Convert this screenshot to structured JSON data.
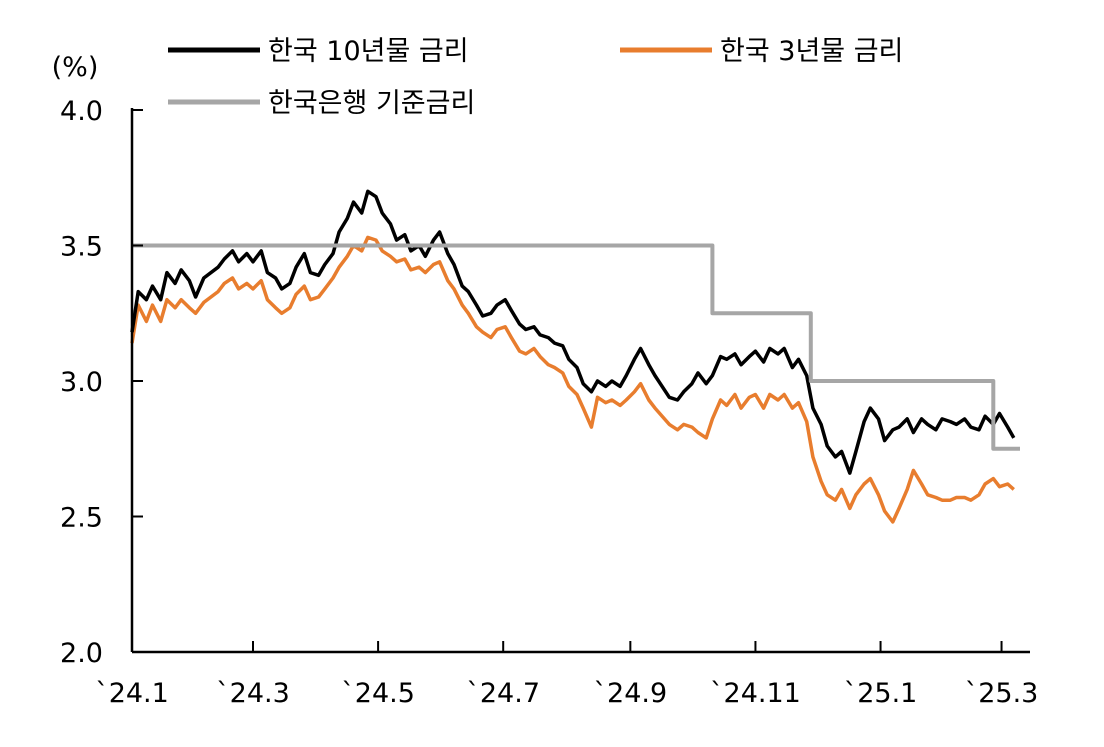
{
  "chart_data": {
    "type": "line",
    "unit_label": "(%)",
    "ylim": [
      2.0,
      4.0
    ],
    "y_ticks": [
      {
        "value": 2.0,
        "label": "2.0"
      },
      {
        "value": 2.5,
        "label": "2.5"
      },
      {
        "value": 3.0,
        "label": "3.0"
      },
      {
        "value": 3.5,
        "label": "3.5"
      },
      {
        "value": 4.0,
        "label": "4.0"
      }
    ],
    "x_start": "2024-01-02",
    "x_end": "2025-03-10",
    "x_ticks": [
      {
        "date": "2024-01-02",
        "label": "`24.1"
      },
      {
        "date": "2024-03-01",
        "label": "`24.3"
      },
      {
        "date": "2024-05-01",
        "label": "`24.5"
      },
      {
        "date": "2024-07-01",
        "label": "`24.7"
      },
      {
        "date": "2024-09-01",
        "label": "`24.9"
      },
      {
        "date": "2024-11-01",
        "label": "`24.11"
      },
      {
        "date": "2025-01-01",
        "label": "`25.1"
      },
      {
        "date": "2025-03-01",
        "label": "`25.3"
      }
    ],
    "grid": false,
    "legend_position": "top",
    "series": [
      {
        "name": "한국 10년물 금리",
        "color": "#000000",
        "points": [
          [
            "2024-01-02",
            3.18
          ],
          [
            "2024-01-05",
            3.33
          ],
          [
            "2024-01-09",
            3.3
          ],
          [
            "2024-01-12",
            3.35
          ],
          [
            "2024-01-16",
            3.3
          ],
          [
            "2024-01-19",
            3.4
          ],
          [
            "2024-01-23",
            3.36
          ],
          [
            "2024-01-26",
            3.41
          ],
          [
            "2024-01-30",
            3.37
          ],
          [
            "2024-02-02",
            3.31
          ],
          [
            "2024-02-06",
            3.38
          ],
          [
            "2024-02-13",
            3.42
          ],
          [
            "2024-02-16",
            3.45
          ],
          [
            "2024-02-20",
            3.48
          ],
          [
            "2024-02-23",
            3.44
          ],
          [
            "2024-02-27",
            3.47
          ],
          [
            "2024-03-01",
            3.44
          ],
          [
            "2024-03-05",
            3.48
          ],
          [
            "2024-03-08",
            3.4
          ],
          [
            "2024-03-12",
            3.38
          ],
          [
            "2024-03-15",
            3.34
          ],
          [
            "2024-03-19",
            3.36
          ],
          [
            "2024-03-22",
            3.42
          ],
          [
            "2024-03-26",
            3.47
          ],
          [
            "2024-03-29",
            3.4
          ],
          [
            "2024-04-02",
            3.39
          ],
          [
            "2024-04-05",
            3.43
          ],
          [
            "2024-04-09",
            3.47
          ],
          [
            "2024-04-12",
            3.55
          ],
          [
            "2024-04-16",
            3.6
          ],
          [
            "2024-04-19",
            3.66
          ],
          [
            "2024-04-23",
            3.62
          ],
          [
            "2024-04-26",
            3.7
          ],
          [
            "2024-04-30",
            3.68
          ],
          [
            "2024-05-03",
            3.62
          ],
          [
            "2024-05-07",
            3.58
          ],
          [
            "2024-05-10",
            3.52
          ],
          [
            "2024-05-14",
            3.54
          ],
          [
            "2024-05-17",
            3.48
          ],
          [
            "2024-05-21",
            3.5
          ],
          [
            "2024-05-24",
            3.46
          ],
          [
            "2024-05-28",
            3.52
          ],
          [
            "2024-05-31",
            3.55
          ],
          [
            "2024-06-04",
            3.47
          ],
          [
            "2024-06-07",
            3.43
          ],
          [
            "2024-06-11",
            3.35
          ],
          [
            "2024-06-14",
            3.33
          ],
          [
            "2024-06-18",
            3.28
          ],
          [
            "2024-06-21",
            3.24
          ],
          [
            "2024-06-25",
            3.25
          ],
          [
            "2024-06-28",
            3.28
          ],
          [
            "2024-07-02",
            3.3
          ],
          [
            "2024-07-05",
            3.26
          ],
          [
            "2024-07-09",
            3.21
          ],
          [
            "2024-07-12",
            3.19
          ],
          [
            "2024-07-16",
            3.2
          ],
          [
            "2024-07-19",
            3.17
          ],
          [
            "2024-07-23",
            3.16
          ],
          [
            "2024-07-26",
            3.14
          ],
          [
            "2024-07-30",
            3.13
          ],
          [
            "2024-08-02",
            3.08
          ],
          [
            "2024-08-06",
            3.05
          ],
          [
            "2024-08-09",
            2.99
          ],
          [
            "2024-08-13",
            2.96
          ],
          [
            "2024-08-16",
            3.0
          ],
          [
            "2024-08-20",
            2.98
          ],
          [
            "2024-08-23",
            3.0
          ],
          [
            "2024-08-27",
            2.98
          ],
          [
            "2024-08-30",
            3.02
          ],
          [
            "2024-09-03",
            3.08
          ],
          [
            "2024-09-06",
            3.12
          ],
          [
            "2024-09-10",
            3.06
          ],
          [
            "2024-09-13",
            3.02
          ],
          [
            "2024-09-20",
            2.94
          ],
          [
            "2024-09-24",
            2.93
          ],
          [
            "2024-09-27",
            2.96
          ],
          [
            "2024-10-01",
            2.99
          ],
          [
            "2024-10-04",
            3.03
          ],
          [
            "2024-10-08",
            2.99
          ],
          [
            "2024-10-11",
            3.02
          ],
          [
            "2024-10-15",
            3.09
          ],
          [
            "2024-10-18",
            3.08
          ],
          [
            "2024-10-22",
            3.1
          ],
          [
            "2024-10-25",
            3.06
          ],
          [
            "2024-10-29",
            3.09
          ],
          [
            "2024-11-01",
            3.11
          ],
          [
            "2024-11-05",
            3.07
          ],
          [
            "2024-11-08",
            3.12
          ],
          [
            "2024-11-12",
            3.1
          ],
          [
            "2024-11-15",
            3.12
          ],
          [
            "2024-11-19",
            3.05
          ],
          [
            "2024-11-22",
            3.08
          ],
          [
            "2024-11-26",
            3.02
          ],
          [
            "2024-11-29",
            2.9
          ],
          [
            "2024-12-03",
            2.84
          ],
          [
            "2024-12-06",
            2.76
          ],
          [
            "2024-12-10",
            2.72
          ],
          [
            "2024-12-13",
            2.74
          ],
          [
            "2024-12-17",
            2.66
          ],
          [
            "2024-12-20",
            2.74
          ],
          [
            "2024-12-24",
            2.85
          ],
          [
            "2024-12-27",
            2.9
          ],
          [
            "2024-12-31",
            2.86
          ],
          [
            "2025-01-03",
            2.78
          ],
          [
            "2025-01-07",
            2.82
          ],
          [
            "2025-01-10",
            2.83
          ],
          [
            "2025-01-14",
            2.86
          ],
          [
            "2025-01-17",
            2.81
          ],
          [
            "2025-01-21",
            2.86
          ],
          [
            "2025-01-24",
            2.84
          ],
          [
            "2025-01-28",
            2.82
          ],
          [
            "2025-01-31",
            2.86
          ],
          [
            "2025-02-04",
            2.85
          ],
          [
            "2025-02-07",
            2.84
          ],
          [
            "2025-02-11",
            2.86
          ],
          [
            "2025-02-14",
            2.83
          ],
          [
            "2025-02-18",
            2.82
          ],
          [
            "2025-02-21",
            2.87
          ],
          [
            "2025-02-25",
            2.84
          ],
          [
            "2025-02-28",
            2.88
          ],
          [
            "2025-03-04",
            2.83
          ],
          [
            "2025-03-07",
            2.79
          ]
        ]
      },
      {
        "name": "한국 3년물 금리",
        "color": "#e87d2e",
        "points": [
          [
            "2024-01-02",
            3.14
          ],
          [
            "2024-01-05",
            3.28
          ],
          [
            "2024-01-09",
            3.22
          ],
          [
            "2024-01-12",
            3.28
          ],
          [
            "2024-01-16",
            3.22
          ],
          [
            "2024-01-19",
            3.3
          ],
          [
            "2024-01-23",
            3.27
          ],
          [
            "2024-01-26",
            3.3
          ],
          [
            "2024-01-30",
            3.27
          ],
          [
            "2024-02-02",
            3.25
          ],
          [
            "2024-02-06",
            3.29
          ],
          [
            "2024-02-13",
            3.33
          ],
          [
            "2024-02-16",
            3.36
          ],
          [
            "2024-02-20",
            3.38
          ],
          [
            "2024-02-23",
            3.34
          ],
          [
            "2024-02-27",
            3.36
          ],
          [
            "2024-03-01",
            3.34
          ],
          [
            "2024-03-05",
            3.37
          ],
          [
            "2024-03-08",
            3.3
          ],
          [
            "2024-03-12",
            3.27
          ],
          [
            "2024-03-15",
            3.25
          ],
          [
            "2024-03-19",
            3.27
          ],
          [
            "2024-03-22",
            3.32
          ],
          [
            "2024-03-26",
            3.35
          ],
          [
            "2024-03-29",
            3.3
          ],
          [
            "2024-04-02",
            3.31
          ],
          [
            "2024-04-05",
            3.34
          ],
          [
            "2024-04-09",
            3.38
          ],
          [
            "2024-04-12",
            3.42
          ],
          [
            "2024-04-16",
            3.46
          ],
          [
            "2024-04-19",
            3.5
          ],
          [
            "2024-04-23",
            3.48
          ],
          [
            "2024-04-26",
            3.53
          ],
          [
            "2024-04-30",
            3.52
          ],
          [
            "2024-05-03",
            3.48
          ],
          [
            "2024-05-07",
            3.46
          ],
          [
            "2024-05-10",
            3.44
          ],
          [
            "2024-05-14",
            3.45
          ],
          [
            "2024-05-17",
            3.41
          ],
          [
            "2024-05-21",
            3.42
          ],
          [
            "2024-05-24",
            3.4
          ],
          [
            "2024-05-28",
            3.43
          ],
          [
            "2024-05-31",
            3.44
          ],
          [
            "2024-06-04",
            3.37
          ],
          [
            "2024-06-07",
            3.34
          ],
          [
            "2024-06-11",
            3.28
          ],
          [
            "2024-06-14",
            3.25
          ],
          [
            "2024-06-18",
            3.2
          ],
          [
            "2024-06-21",
            3.18
          ],
          [
            "2024-06-25",
            3.16
          ],
          [
            "2024-06-28",
            3.19
          ],
          [
            "2024-07-02",
            3.2
          ],
          [
            "2024-07-05",
            3.16
          ],
          [
            "2024-07-09",
            3.11
          ],
          [
            "2024-07-12",
            3.1
          ],
          [
            "2024-07-16",
            3.12
          ],
          [
            "2024-07-19",
            3.09
          ],
          [
            "2024-07-23",
            3.06
          ],
          [
            "2024-07-26",
            3.05
          ],
          [
            "2024-07-30",
            3.03
          ],
          [
            "2024-08-02",
            2.98
          ],
          [
            "2024-08-06",
            2.95
          ],
          [
            "2024-08-09",
            2.9
          ],
          [
            "2024-08-13",
            2.83
          ],
          [
            "2024-08-16",
            2.94
          ],
          [
            "2024-08-20",
            2.92
          ],
          [
            "2024-08-23",
            2.93
          ],
          [
            "2024-08-27",
            2.91
          ],
          [
            "2024-08-30",
            2.93
          ],
          [
            "2024-09-03",
            2.96
          ],
          [
            "2024-09-06",
            2.99
          ],
          [
            "2024-09-10",
            2.93
          ],
          [
            "2024-09-13",
            2.9
          ],
          [
            "2024-09-20",
            2.84
          ],
          [
            "2024-09-24",
            2.82
          ],
          [
            "2024-09-27",
            2.84
          ],
          [
            "2024-10-01",
            2.83
          ],
          [
            "2024-10-04",
            2.81
          ],
          [
            "2024-10-08",
            2.79
          ],
          [
            "2024-10-11",
            2.86
          ],
          [
            "2024-10-15",
            2.93
          ],
          [
            "2024-10-18",
            2.91
          ],
          [
            "2024-10-22",
            2.95
          ],
          [
            "2024-10-25",
            2.9
          ],
          [
            "2024-10-29",
            2.94
          ],
          [
            "2024-11-01",
            2.95
          ],
          [
            "2024-11-05",
            2.9
          ],
          [
            "2024-11-08",
            2.95
          ],
          [
            "2024-11-12",
            2.93
          ],
          [
            "2024-11-15",
            2.95
          ],
          [
            "2024-11-19",
            2.9
          ],
          [
            "2024-11-22",
            2.92
          ],
          [
            "2024-11-26",
            2.85
          ],
          [
            "2024-11-29",
            2.72
          ],
          [
            "2024-12-03",
            2.63
          ],
          [
            "2024-12-06",
            2.58
          ],
          [
            "2024-12-10",
            2.56
          ],
          [
            "2024-12-13",
            2.6
          ],
          [
            "2024-12-17",
            2.53
          ],
          [
            "2024-12-20",
            2.58
          ],
          [
            "2024-12-24",
            2.62
          ],
          [
            "2024-12-27",
            2.64
          ],
          [
            "2024-12-31",
            2.58
          ],
          [
            "2025-01-03",
            2.52
          ],
          [
            "2025-01-07",
            2.48
          ],
          [
            "2025-01-10",
            2.53
          ],
          [
            "2025-01-14",
            2.6
          ],
          [
            "2025-01-17",
            2.67
          ],
          [
            "2025-01-21",
            2.62
          ],
          [
            "2025-01-24",
            2.58
          ],
          [
            "2025-01-28",
            2.57
          ],
          [
            "2025-01-31",
            2.56
          ],
          [
            "2025-02-04",
            2.56
          ],
          [
            "2025-02-07",
            2.57
          ],
          [
            "2025-02-11",
            2.57
          ],
          [
            "2025-02-14",
            2.56
          ],
          [
            "2025-02-18",
            2.58
          ],
          [
            "2025-02-21",
            2.62
          ],
          [
            "2025-02-25",
            2.64
          ],
          [
            "2025-02-28",
            2.61
          ],
          [
            "2025-03-04",
            2.62
          ],
          [
            "2025-03-07",
            2.6
          ]
        ]
      },
      {
        "name": "한국은행 기준금리",
        "color": "#a6a6a6",
        "step": true,
        "points": [
          [
            "2024-01-02",
            3.5
          ],
          [
            "2024-10-11",
            3.5
          ],
          [
            "2024-10-11",
            3.25
          ],
          [
            "2024-11-28",
            3.25
          ],
          [
            "2024-11-28",
            3.0
          ],
          [
            "2025-02-25",
            3.0
          ],
          [
            "2025-02-25",
            2.75
          ],
          [
            "2025-03-10",
            2.75
          ]
        ]
      }
    ]
  }
}
